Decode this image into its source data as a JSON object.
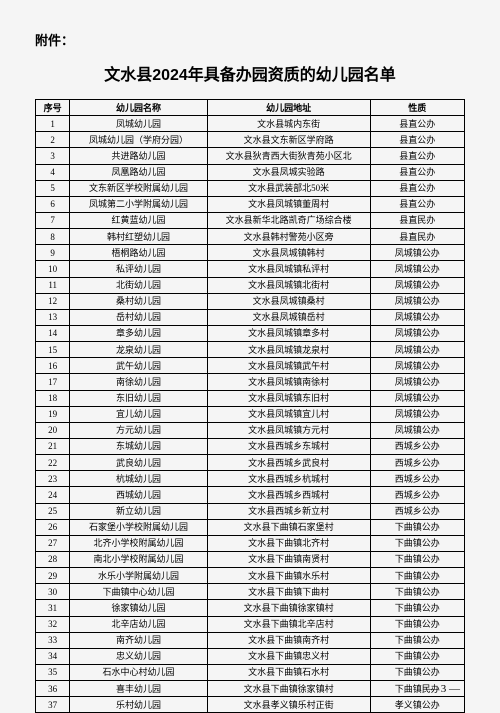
{
  "attachment_label": "附件：",
  "title": "文水县2024年具备办园资质的幼儿园名单",
  "headers": {
    "num": "序号",
    "name": "幼儿园名称",
    "addr": "幼儿园地址",
    "type": "性质"
  },
  "rows": [
    {
      "n": "1",
      "name": "凤城幼儿园",
      "addr": "文水县城内东街",
      "type": "县直公办"
    },
    {
      "n": "2",
      "name": "凤城幼儿园（学府分园）",
      "addr": "文水县文东新区学府路",
      "type": "县直公办"
    },
    {
      "n": "3",
      "name": "共进路幼儿园",
      "addr": "文水县狄青西大街狄青苑小区北",
      "type": "县直公办"
    },
    {
      "n": "4",
      "name": "凤凰路幼儿园",
      "addr": "文水县凤城实验路",
      "type": "县直公办"
    },
    {
      "n": "5",
      "name": "文东新区学校附属幼儿园",
      "addr": "文水县武装部北50米",
      "type": "县直公办"
    },
    {
      "n": "6",
      "name": "凤城第二小学附属幼儿园",
      "addr": "文水县凤城镇董周村",
      "type": "县直公办"
    },
    {
      "n": "7",
      "name": "红黄蓝幼儿园",
      "addr": "文水县新华北路凯奇广场综合楼",
      "type": "县直民办"
    },
    {
      "n": "8",
      "name": "韩村红塑幼儿园",
      "addr": "文水县韩村警苑小区旁",
      "type": "县直民办"
    },
    {
      "n": "9",
      "name": "梧桐路幼儿园",
      "addr": "文水县凤城镇韩村",
      "type": "凤城镇公办"
    },
    {
      "n": "10",
      "name": "私评幼儿园",
      "addr": "文水县凤城镇私评村",
      "type": "凤城镇公办"
    },
    {
      "n": "11",
      "name": "北街幼儿园",
      "addr": "文水县凤城镇北街村",
      "type": "凤城镇公办"
    },
    {
      "n": "12",
      "name": "桑村幼儿园",
      "addr": "文水县凤城镇桑村",
      "type": "凤城镇公办"
    },
    {
      "n": "13",
      "name": "岳村幼儿园",
      "addr": "文水县凤城镇岳村",
      "type": "凤城镇公办"
    },
    {
      "n": "14",
      "name": "章多幼儿园",
      "addr": "文水县凤城镇章多村",
      "type": "凤城镇公办"
    },
    {
      "n": "15",
      "name": "龙泉幼儿园",
      "addr": "文水县凤城镇龙泉村",
      "type": "凤城镇公办"
    },
    {
      "n": "16",
      "name": "武午幼儿园",
      "addr": "文水县凤城镇武午村",
      "type": "凤城镇公办"
    },
    {
      "n": "17",
      "name": "南徐幼儿园",
      "addr": "文水县凤城镇南徐村",
      "type": "凤城镇公办"
    },
    {
      "n": "18",
      "name": "东旧幼儿园",
      "addr": "文水县凤城镇东旧村",
      "type": "凤城镇公办"
    },
    {
      "n": "19",
      "name": "宜儿幼儿园",
      "addr": "文水县凤城镇宜儿村",
      "type": "凤城镇公办"
    },
    {
      "n": "20",
      "name": "方元幼儿园",
      "addr": "文水县凤城镇方元村",
      "type": "凤城镇公办"
    },
    {
      "n": "21",
      "name": "东城幼儿园",
      "addr": "文水县西城乡东城村",
      "type": "西城乡公办"
    },
    {
      "n": "22",
      "name": "武良幼儿园",
      "addr": "文水县西城乡武良村",
      "type": "西城乡公办"
    },
    {
      "n": "23",
      "name": "杭城幼儿园",
      "addr": "文水县西城乡杭城村",
      "type": "西城乡公办"
    },
    {
      "n": "24",
      "name": "西城幼儿园",
      "addr": "文水县西城乡西城村",
      "type": "西城乡公办"
    },
    {
      "n": "25",
      "name": "新立幼儿园",
      "addr": "文水县西城乡新立村",
      "type": "西城乡公办"
    },
    {
      "n": "26",
      "name": "石家堡小学校附属幼儿园",
      "addr": "文水县下曲镇石家堡村",
      "type": "下曲镇公办"
    },
    {
      "n": "27",
      "name": "北齐小学校附属幼儿园",
      "addr": "文水县下曲镇北齐村",
      "type": "下曲镇公办"
    },
    {
      "n": "28",
      "name": "南北小学校附属幼儿园",
      "addr": "文水县下曲镇南贤村",
      "type": "下曲镇公办"
    },
    {
      "n": "29",
      "name": "水乐小学附属幼儿园",
      "addr": "文水县下曲镇水乐村",
      "type": "下曲镇公办"
    },
    {
      "n": "30",
      "name": "下曲镇中心幼儿园",
      "addr": "文水县下曲镇下曲村",
      "type": "下曲镇公办"
    },
    {
      "n": "31",
      "name": "徐家镇幼儿园",
      "addr": "文水县下曲镇徐家镇村",
      "type": "下曲镇公办"
    },
    {
      "n": "32",
      "name": "北辛店幼儿园",
      "addr": "文水县下曲镇北辛店村",
      "type": "下曲镇公办"
    },
    {
      "n": "33",
      "name": "南齐幼儿园",
      "addr": "文水县下曲镇南齐村",
      "type": "下曲镇公办"
    },
    {
      "n": "34",
      "name": "忠义幼儿园",
      "addr": "文水县下曲镇忠义村",
      "type": "下曲镇公办"
    },
    {
      "n": "35",
      "name": "石水中心村幼儿园",
      "addr": "文水县下曲镇石水村",
      "type": "下曲镇公办"
    },
    {
      "n": "36",
      "name": "喜丰幼儿园",
      "addr": "文水县下曲镇徐家镇村",
      "type": "下曲镇民办"
    },
    {
      "n": "37",
      "name": "乐村幼儿园",
      "addr": "文水县孝义镇乐村正街",
      "type": "孝义镇公办"
    }
  ],
  "page_number": "— 3 —"
}
